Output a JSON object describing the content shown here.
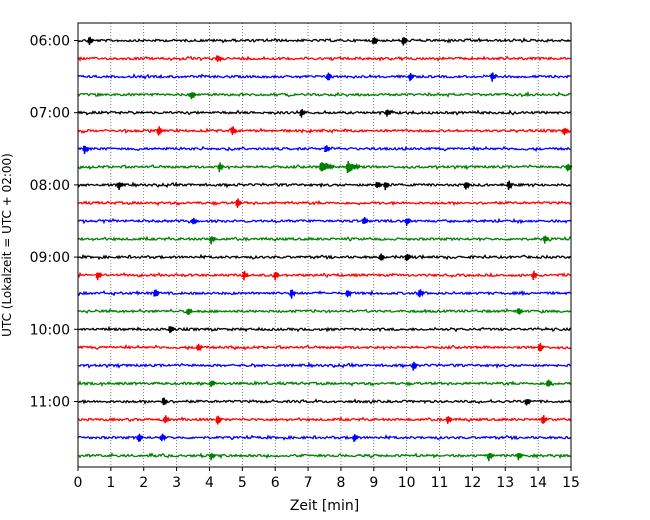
{
  "chart_data": {
    "type": "line",
    "title": "",
    "xlabel": "Zeit  [min]",
    "ylabel": "UTC (Lokalzeit = UTC + 02:00)",
    "xlim": [
      0,
      15
    ],
    "xticks": [
      0,
      1,
      2,
      3,
      4,
      5,
      6,
      7,
      8,
      9,
      10,
      11,
      12,
      13,
      14,
      15
    ],
    "x_grid": true,
    "y_tick_labels": [
      "06:00",
      "07:00",
      "08:00",
      "09:00",
      "10:00",
      "11:00"
    ],
    "y_tick_trace_index": [
      0,
      4,
      8,
      12,
      16,
      20
    ],
    "trace_colors": [
      "#000000",
      "#ff0000",
      "#0000ff",
      "#008000"
    ],
    "traces": [
      {
        "start": "06:00",
        "color": "#000000",
        "events": [
          0.35,
          9.0,
          9.9
        ]
      },
      {
        "start": "06:15",
        "color": "#ff0000",
        "events": [
          4.25
        ]
      },
      {
        "start": "06:30",
        "color": "#0000ff",
        "events": [
          7.6,
          10.1,
          12.6
        ]
      },
      {
        "start": "06:45",
        "color": "#008000",
        "events": [
          3.45
        ]
      },
      {
        "start": "07:00",
        "color": "#000000",
        "events": [
          6.8,
          9.4
        ]
      },
      {
        "start": "07:15",
        "color": "#ff0000",
        "events": [
          2.45,
          4.7,
          14.8
        ]
      },
      {
        "start": "07:30",
        "color": "#0000ff",
        "events": [
          0.2,
          7.55
        ]
      },
      {
        "start": "07:45",
        "color": "#008000",
        "events": [
          4.3,
          7.4,
          8.2,
          14.9
        ]
      },
      {
        "start": "08:00",
        "color": "#000000",
        "events": [
          1.25,
          9.1,
          9.35,
          11.8,
          13.1
        ]
      },
      {
        "start": "08:15",
        "color": "#ff0000",
        "events": [
          4.85
        ]
      },
      {
        "start": "08:30",
        "color": "#0000ff",
        "events": [
          3.5,
          8.7,
          10.0
        ]
      },
      {
        "start": "08:45",
        "color": "#008000",
        "events": [
          4.05,
          14.2
        ]
      },
      {
        "start": "09:00",
        "color": "#000000",
        "events": [
          9.2,
          10.0
        ]
      },
      {
        "start": "09:15",
        "color": "#ff0000",
        "events": [
          0.6,
          5.05,
          6.0,
          13.85
        ]
      },
      {
        "start": "09:30",
        "color": "#0000ff",
        "events": [
          2.35,
          6.5,
          8.2,
          10.4
        ]
      },
      {
        "start": "09:45",
        "color": "#008000",
        "events": [
          3.35,
          13.4
        ]
      },
      {
        "start": "10:00",
        "color": "#000000",
        "events": [
          2.8
        ]
      },
      {
        "start": "10:15",
        "color": "#ff0000",
        "events": [
          3.65,
          14.05
        ]
      },
      {
        "start": "10:30",
        "color": "#0000ff",
        "events": [
          10.2
        ]
      },
      {
        "start": "10:45",
        "color": "#008000",
        "events": [
          4.05,
          14.3
        ]
      },
      {
        "start": "11:00",
        "color": "#000000",
        "events": [
          2.6,
          13.65
        ]
      },
      {
        "start": "11:15",
        "color": "#ff0000",
        "events": [
          2.65,
          4.25,
          11.25,
          14.15
        ]
      },
      {
        "start": "11:30",
        "color": "#0000ff",
        "events": [
          1.85,
          2.55,
          8.4
        ]
      },
      {
        "start": "11:45",
        "color": "#008000",
        "events": [
          4.05,
          12.5,
          13.4
        ]
      }
    ]
  }
}
